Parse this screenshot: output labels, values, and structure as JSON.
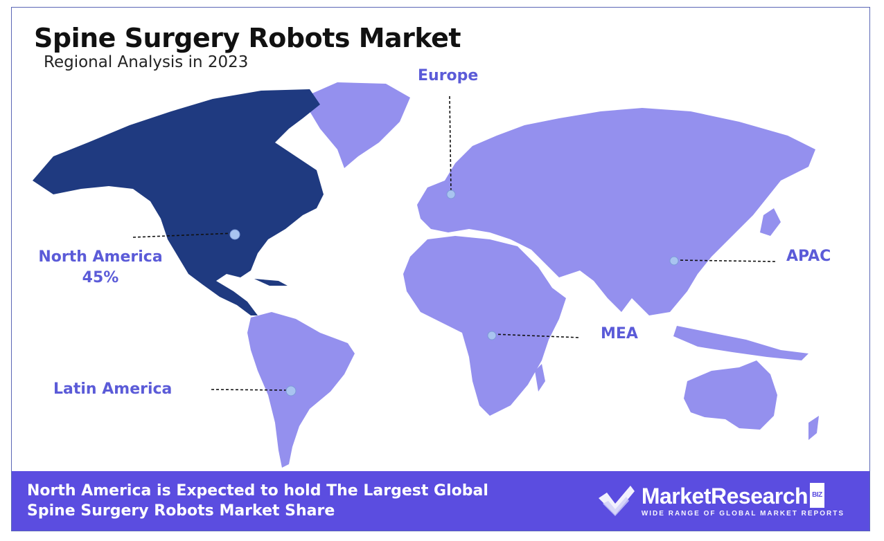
{
  "title": "Spine Surgery Robots Market",
  "subtitle": "Regional Analysis in 2023",
  "regions": [
    {
      "name": "North America",
      "value": "45%",
      "highlight": true
    },
    {
      "name": "Europe",
      "value": "",
      "highlight": false
    },
    {
      "name": "APAC",
      "value": "",
      "highlight": false
    },
    {
      "name": "MEA",
      "value": "",
      "highlight": false
    },
    {
      "name": "Latin America",
      "value": "",
      "highlight": false
    }
  ],
  "footer": {
    "line1": "North America is Expected to hold The Largest Global",
    "line2": "Spine Surgery Robots Market Share"
  },
  "brand": {
    "name": "MarketResearch",
    "badge": "BIZ",
    "tagline": "WIDE RANGE OF GLOBAL MARKET REPORTS"
  },
  "colors": {
    "highlight": "#1f3a80",
    "land": "#9490ee",
    "label": "#5b5bd8",
    "footer": "#5b4de0"
  }
}
